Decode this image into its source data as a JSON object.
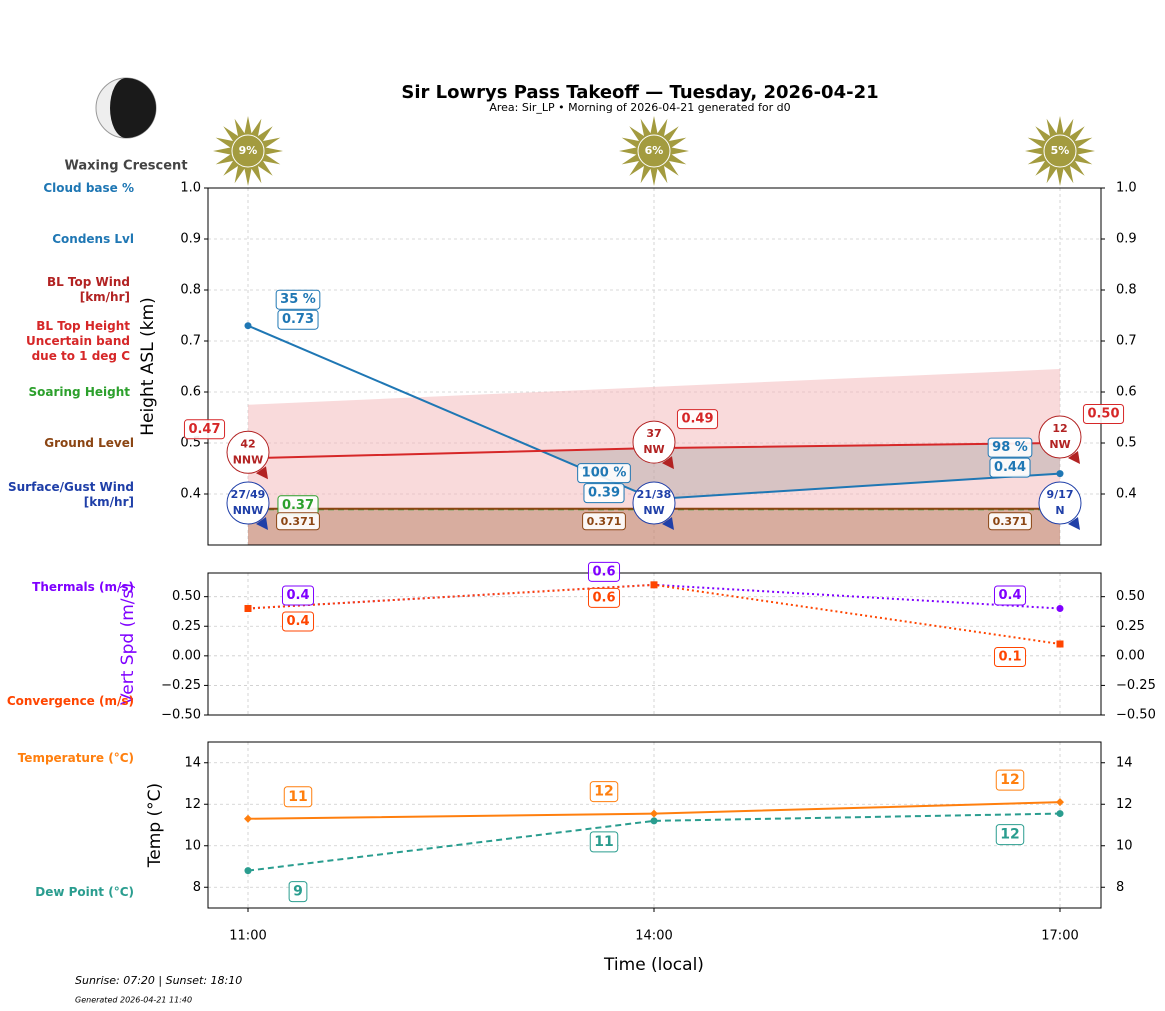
{
  "title": "Sir Lowrys Pass Takeoff — Tuesday, 2026-04-21",
  "subtitle": "Area: Sir_LP • Morning of 2026-04-21 generated for d0",
  "moon_phase": "Waxing Crescent",
  "sun_times": "Sunrise: 07:20 | Sunset: 18:10",
  "generated": "Generated 2026-04-21 11:40",
  "chart_data": [
    {
      "type": "line",
      "ylabel": "Height ASL (km)",
      "ylim": [
        0.3,
        1.0
      ],
      "yticks": [
        0.4,
        0.5,
        0.6,
        0.7,
        0.8,
        0.9,
        {
          "value": 1,
          "label": "1.0"
        }
      ],
      "grid": true,
      "sun": {
        "color": "#a39b3f",
        "values": [
          9,
          6,
          5
        ],
        "value_labels": [
          "9%",
          "6%",
          "5%"
        ]
      },
      "cloud_base": {
        "name": "Cloud base %",
        "color": "#1f77b4",
        "values": [
          35,
          100,
          98
        ],
        "value_labels": [
          "35 %",
          "100 %",
          "98 %"
        ]
      },
      "band": {
        "name": "Uncertain band due to 1 deg C",
        "color": "#f4b6b8",
        "lower": [
          0.3,
          0.3,
          0.3
        ],
        "upper": [
          0.575,
          0.61,
          0.645
        ]
      },
      "series": [
        {
          "name": "Condens Lvl",
          "color": "#1f77b4",
          "style": "solid",
          "marker": "circle",
          "values": [
            0.73,
            0.39,
            0.44
          ]
        },
        {
          "name": "BL Top Height",
          "color": "#d62728",
          "style": "solid",
          "values": [
            0.47,
            0.49,
            0.5
          ],
          "value_labels": [
            "0.47",
            "0.49",
            "0.50"
          ]
        },
        {
          "name": "Soaring Height",
          "color": "#2ca02c",
          "style": "dashed",
          "values": [
            0.37,
            0.37,
            0.37
          ],
          "value_labels": [
            "0.37",
            null,
            null
          ]
        },
        {
          "name": "Ground Level",
          "color": "#8b4513",
          "style": "solid",
          "values": [
            0.371,
            0.371,
            0.371
          ]
        }
      ],
      "bl_wind": {
        "name": "BL Top Wind [km/hr]",
        "color": "#b22222",
        "speed": [
          42,
          37,
          12
        ],
        "direction": [
          "NNW",
          "NW",
          "NW"
        ]
      },
      "surface_wind": {
        "name": "Surface/Gust Wind [km/hr]",
        "color": "#1f3fa8",
        "speed": [
          27,
          21,
          9
        ],
        "gust": [
          49,
          38,
          17
        ],
        "value_labels": [
          "27/49",
          "21/38",
          "9/17"
        ],
        "direction": [
          "NNW",
          "NW",
          "N"
        ]
      }
    },
    {
      "type": "line",
      "ylabel": "Vert Spd (m/s)",
      "ylim": [
        -0.5,
        0.7
      ],
      "yticks": [
        {
          "value": -0.5,
          "label": "−0.50"
        },
        {
          "value": -0.25,
          "label": "−0.25"
        },
        {
          "value": 0,
          "label": "0.00"
        },
        {
          "value": 0.25,
          "label": "0.25"
        },
        {
          "value": 0.5,
          "label": "0.50"
        }
      ],
      "grid": true,
      "series": [
        {
          "name": "Thermals (m/s)",
          "color": "#7f00ff",
          "style": "dotted",
          "marker": "circle",
          "values": [
            0.4,
            0.6,
            0.4
          ]
        },
        {
          "name": "Convergence (m/s)",
          "color": "#ff4500",
          "style": "dotted",
          "marker": "square",
          "values": [
            0.4,
            0.6,
            0.1
          ]
        }
      ]
    },
    {
      "type": "line",
      "ylabel": "Temp (°C)",
      "xlabel": "Time (local)",
      "categories": [
        "11:00",
        "14:00",
        "17:00"
      ],
      "ylim": [
        7,
        15
      ],
      "yticks": [
        8,
        10,
        12,
        14
      ],
      "grid": true,
      "series": [
        {
          "name": "Temperature (°C)",
          "color": "#ff7f0e",
          "style": "solid",
          "marker": "diamond",
          "values": [
            11.3,
            11.55,
            12.1
          ],
          "value_labels": [
            "11",
            "12",
            "12"
          ]
        },
        {
          "name": "Dew Point (°C)",
          "color": "#2a9d8f",
          "style": "dashed",
          "marker": "circle",
          "values": [
            8.8,
            11.2,
            11.55
          ],
          "value_labels": [
            "9",
            "11",
            "12"
          ]
        }
      ]
    }
  ]
}
